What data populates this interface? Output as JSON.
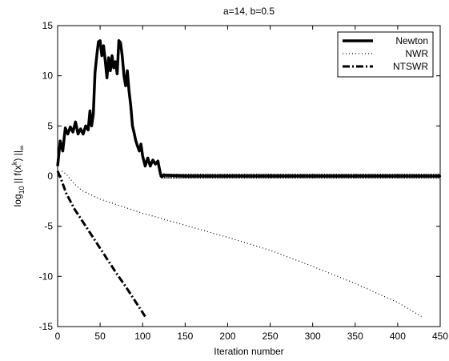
{
  "chart_data": {
    "type": "line",
    "title": "a=14, b=0.5",
    "xlabel": "Iteration number",
    "ylabel_main": "log",
    "ylabel_sub": "10",
    "ylabel_rest": " || f(x",
    "ylabel_sup": "k",
    "ylabel_tail": ") ||",
    "ylabel_inf": "∞",
    "xlim": [
      0,
      450
    ],
    "ylim": [
      -15,
      15
    ],
    "xticks": [
      "0",
      "50",
      "100",
      "150",
      "200",
      "250",
      "300",
      "350",
      "400",
      "450"
    ],
    "yticks": [
      "15",
      "10",
      "5",
      "0",
      "-5",
      "-10",
      "-15"
    ],
    "grid": false,
    "legend_position": "top-right",
    "series": [
      {
        "name": "Newton",
        "style": "solid",
        "color": "#000000",
        "x": [
          0,
          3,
          6,
          9,
          12,
          15,
          18,
          21,
          24,
          27,
          30,
          33,
          36,
          38,
          40,
          42,
          44,
          46,
          48,
          50,
          52,
          54,
          56,
          58,
          60,
          62,
          64,
          66,
          68,
          70,
          72,
          74,
          76,
          78,
          80,
          82,
          84,
          86,
          88,
          90,
          92,
          94,
          96,
          98,
          100,
          103,
          106,
          109,
          112,
          115,
          118,
          121,
          122,
          125,
          150,
          200,
          250,
          300,
          350,
          400,
          449
        ],
        "y": [
          1,
          3.5,
          2.5,
          4.8,
          4.2,
          4.9,
          4.4,
          5.4,
          4.2,
          4.7,
          4.2,
          5.0,
          4.6,
          6.5,
          5.0,
          6.2,
          10.3,
          12.0,
          13.4,
          13.5,
          12.0,
          13.0,
          11.5,
          9.8,
          11.8,
          10.5,
          12.0,
          10.8,
          11.4,
          10.2,
          13.5,
          13.3,
          12.0,
          10.0,
          9.0,
          10.5,
          8.5,
          7.0,
          5.0,
          4.3,
          3.5,
          3.0,
          2.5,
          3.2,
          2.0,
          1.0,
          1.8,
          1.0,
          1.6,
          1.2,
          1.5,
          0.2,
          0.0,
          0.1,
          0.0,
          0.0,
          0.0,
          0.0,
          0.0,
          0.0,
          0.0
        ]
      },
      {
        "name": "NWR",
        "style": "dotted",
        "color": "#000000",
        "x": [
          5,
          10,
          15,
          20,
          25,
          30,
          40,
          50,
          75,
          100,
          150,
          200,
          250,
          300,
          350,
          400,
          428
        ],
        "y": [
          0.5,
          0.2,
          -0.3,
          -0.8,
          -1.2,
          -1.5,
          -1.9,
          -2.3,
          -3.0,
          -3.7,
          -4.9,
          -6.1,
          -7.4,
          -9.0,
          -10.7,
          -12.6,
          -14.0
        ]
      },
      {
        "name": "NTSWR",
        "style": "dashdot",
        "color": "#000000",
        "x": [
          0,
          5,
          10,
          20,
          30,
          40,
          50,
          60,
          70,
          80,
          90,
          100,
          103
        ],
        "y": [
          0.5,
          -0.5,
          -1.7,
          -3.3,
          -4.6,
          -5.9,
          -7.2,
          -8.5,
          -9.8,
          -11.0,
          -12.3,
          -13.6,
          -14.0
        ]
      }
    ]
  }
}
